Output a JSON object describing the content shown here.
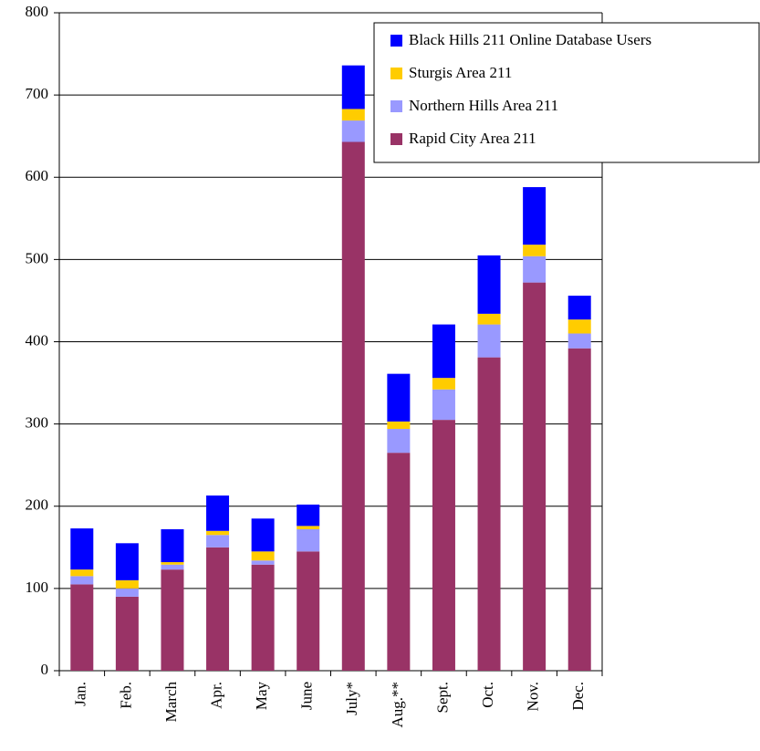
{
  "chart_data": {
    "type": "stacked_bar",
    "categories": [
      "Jan.",
      "Feb.",
      "March",
      "Apr.",
      "May",
      "June",
      "July*",
      "Aug.**",
      "Sept.",
      "Oct.",
      "Nov.",
      "Dec."
    ],
    "series": [
      {
        "name": "Rapid City Area 211",
        "color": "#993366",
        "values": [
          105,
          90,
          123,
          150,
          129,
          145,
          643,
          265,
          305,
          381,
          472,
          392
        ]
      },
      {
        "name": "Northern Hills Area 211",
        "color": "#9999ff",
        "values": [
          10,
          10,
          6,
          15,
          5,
          27,
          26,
          29,
          37,
          40,
          32,
          18
        ]
      },
      {
        "name": "Sturgis Area 211",
        "color": "#ffcc00",
        "values": [
          8,
          10,
          3,
          5,
          11,
          4,
          14,
          9,
          14,
          13,
          14,
          17
        ]
      },
      {
        "name": "Black Hills 211 Online Database Users",
        "color": "#0000ff",
        "values": [
          50,
          45,
          40,
          43,
          40,
          26,
          53,
          58,
          65,
          71,
          70,
          29
        ]
      }
    ],
    "ylim": [
      0,
      800
    ],
    "yticks": [
      0,
      100,
      200,
      300,
      400,
      500,
      600,
      700,
      800
    ],
    "grid": true,
    "legend": "upper right"
  }
}
